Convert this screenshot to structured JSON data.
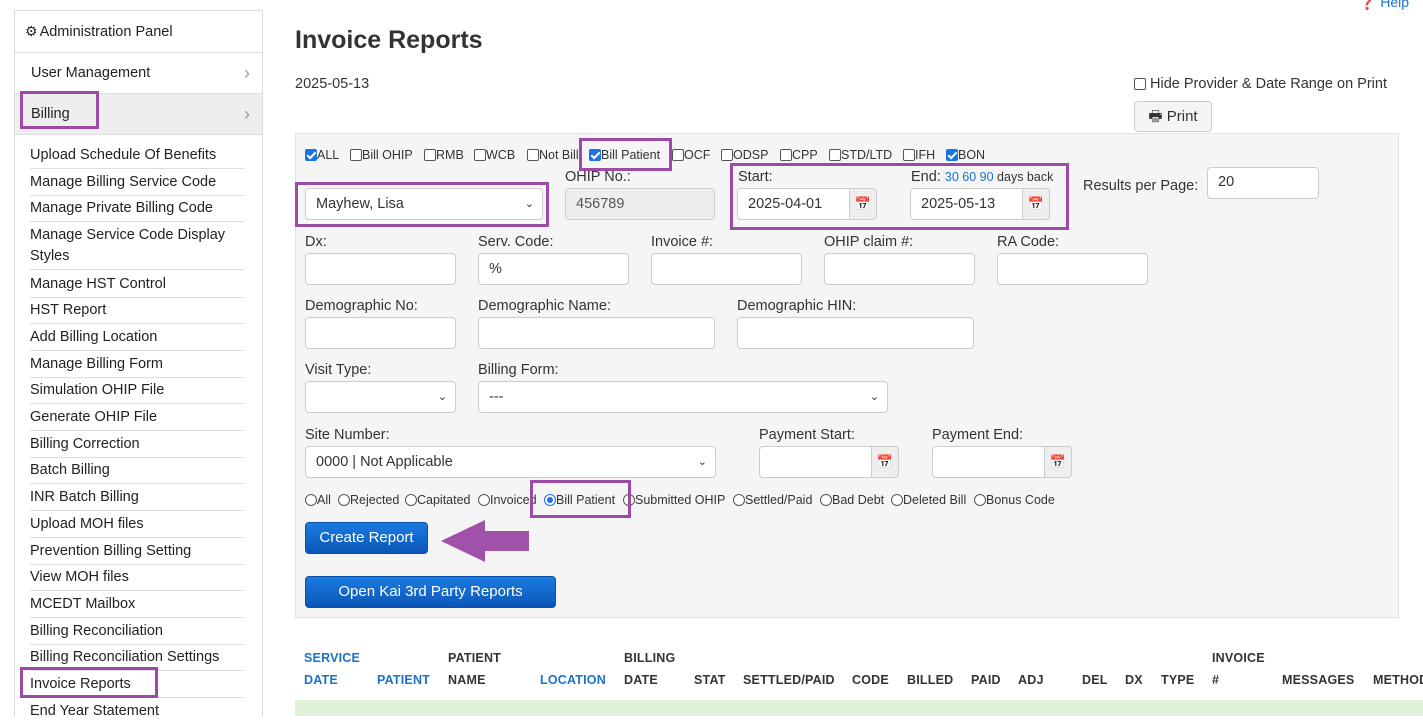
{
  "sidebar": {
    "header": "Administration Panel",
    "user_management": "User Management",
    "billing": "Billing",
    "items": [
      "Upload Schedule Of Benefits",
      "Manage Billing Service Code",
      "Manage Private Billing Code",
      "Manage Service Code Display Styles",
      "Manage HST Control",
      "HST Report",
      "Add Billing Location",
      "Manage Billing Form",
      "Simulation OHIP File",
      "Generate OHIP File",
      "Billing Correction",
      "Batch Billing",
      "INR Batch Billing",
      "Upload MOH files",
      "Prevention Billing Setting",
      "View MOH files",
      "MCEDT Mailbox",
      "Billing Reconciliation",
      "Billing Reconciliation Settings",
      "Invoice Reports",
      "End Year Statement"
    ]
  },
  "help": "Help",
  "page": {
    "title": "Invoice Reports",
    "date": "2025-05-13",
    "hide_label": "Hide Provider & Date Range on Print",
    "print_label": "Print"
  },
  "types": [
    {
      "label": "ALL",
      "checked": true
    },
    {
      "label": "Bill OHIP",
      "checked": false
    },
    {
      "label": "RMB",
      "checked": false
    },
    {
      "label": "WCB",
      "checked": false
    },
    {
      "label": "Not Bill",
      "checked": false
    },
    {
      "label": "Bill Patient",
      "checked": true
    },
    {
      "label": "OCF",
      "checked": false
    },
    {
      "label": "ODSP",
      "checked": false
    },
    {
      "label": "CPP",
      "checked": false
    },
    {
      "label": "STD/LTD",
      "checked": false
    },
    {
      "label": "IFH",
      "checked": false
    },
    {
      "label": "BON",
      "checked": true
    }
  ],
  "form": {
    "provider": "Mayhew, Lisa",
    "ohip_label": "OHIP No.:",
    "ohip_value": "456789",
    "start_label": "Start:",
    "start_value": "2025-04-01",
    "end_label": "End:",
    "days": [
      "30",
      "60",
      "90"
    ],
    "days_suffix": "days back",
    "end_value": "2025-05-13",
    "rpp_label": "Results per Page:",
    "rpp_value": "20",
    "dx_label": "Dx:",
    "serv_label": "Serv. Code:",
    "serv_value": "%",
    "invoice_label": "Invoice #:",
    "claim_label": "OHIP claim #:",
    "ra_label": "RA Code:",
    "demo_no_label": "Demographic No:",
    "demo_name_label": "Demographic Name:",
    "demo_hin_label": "Demographic HIN:",
    "visit_label": "Visit Type:",
    "billing_form_label": "Billing Form:",
    "billing_form_value": "---",
    "site_label": "Site Number:",
    "site_value": "0000 | Not Applicable",
    "pay_start_label": "Payment Start:",
    "pay_end_label": "Payment End:"
  },
  "statuses": [
    {
      "label": "All",
      "checked": false
    },
    {
      "label": "Rejected",
      "checked": false
    },
    {
      "label": "Capitated",
      "checked": false
    },
    {
      "label": "Invoiced",
      "checked": false
    },
    {
      "label": "Bill Patient",
      "checked": true
    },
    {
      "label": "Submitted OHIP",
      "checked": false
    },
    {
      "label": "Settled/Paid",
      "checked": false
    },
    {
      "label": "Bad Debt",
      "checked": false
    },
    {
      "label": "Deleted Bill",
      "checked": false
    },
    {
      "label": "Bonus Code",
      "checked": false
    }
  ],
  "buttons": {
    "create": "Create Report",
    "kai": "Open Kai 3rd Party Reports"
  },
  "table": {
    "service_1": "SERVICE",
    "service_2": "DATE",
    "patient": "PATIENT",
    "patient_name_1": "PATIENT",
    "patient_name_2": "NAME",
    "location": "LOCATION",
    "billing_date_1": "BILLING",
    "billing_date_2": "DATE",
    "stat": "STAT",
    "settled": "SETTLED/PAID",
    "code": "CODE",
    "billed": "BILLED",
    "paid": "PAID",
    "adj": "ADJ",
    "del": "DEL",
    "dx": "DX",
    "type": "TYPE",
    "invoice_1": "INVOICE",
    "invoice_2": "#",
    "messages": "MESSAGES",
    "method": "METHOD"
  },
  "colors": {
    "highlight": "#9b4aa5",
    "primary": "#0c56b8",
    "link": "#1a73c9"
  }
}
